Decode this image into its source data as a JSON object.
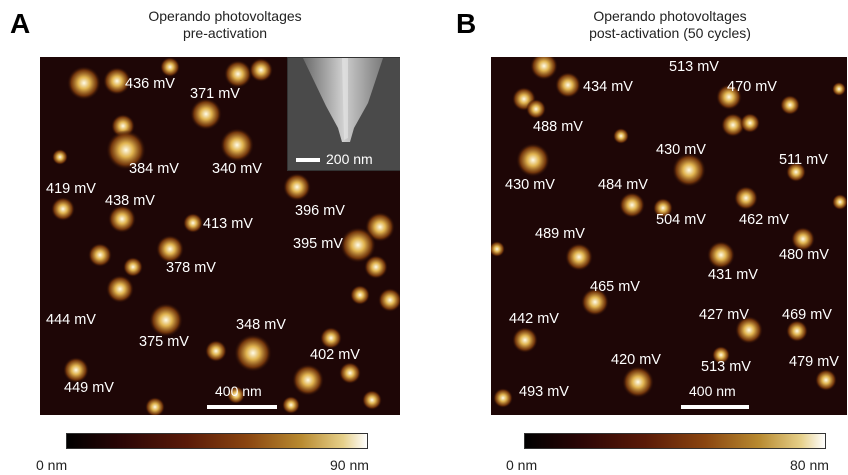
{
  "panel_a": {
    "letter": "A",
    "title_line1": "Operando photovoltages",
    "title_line2": "pre-activation",
    "scalebar": "400 nm",
    "inset_scalebar": "200 nm",
    "colorbar_min": "0 nm",
    "colorbar_max": "90 nm",
    "labels": [
      "436 mV",
      "371 mV",
      "384 mV",
      "340 mV",
      "419 mV",
      "438 mV",
      "396 mV",
      "413 mV",
      "395 mV",
      "378 mV",
      "444 mV",
      "348 mV",
      "375 mV",
      "402 mV",
      "449 mV"
    ]
  },
  "panel_b": {
    "letter": "B",
    "title_line1": "Operando photovoltages",
    "title_line2": "post-activation (50 cycles)",
    "scalebar": "400 nm",
    "colorbar_min": "0 nm",
    "colorbar_max": "80 nm",
    "labels": [
      "513 mV",
      "434 mV",
      "470 mV",
      "488 mV",
      "430 mV",
      "511 mV",
      "430 mV",
      "484 mV",
      "504 mV",
      "462 mV",
      "489 mV",
      "480 mV",
      "431 mV",
      "465 mV",
      "442 mV",
      "427 mV",
      "469 mV",
      "420 mV",
      "513 mV",
      "479 mV",
      "493 mV"
    ]
  },
  "colors": {
    "background": "#1e0606",
    "particle_core": "#fffbe8",
    "particle_mid": "#e0b450",
    "particle_edge": "#7a3a0c"
  }
}
